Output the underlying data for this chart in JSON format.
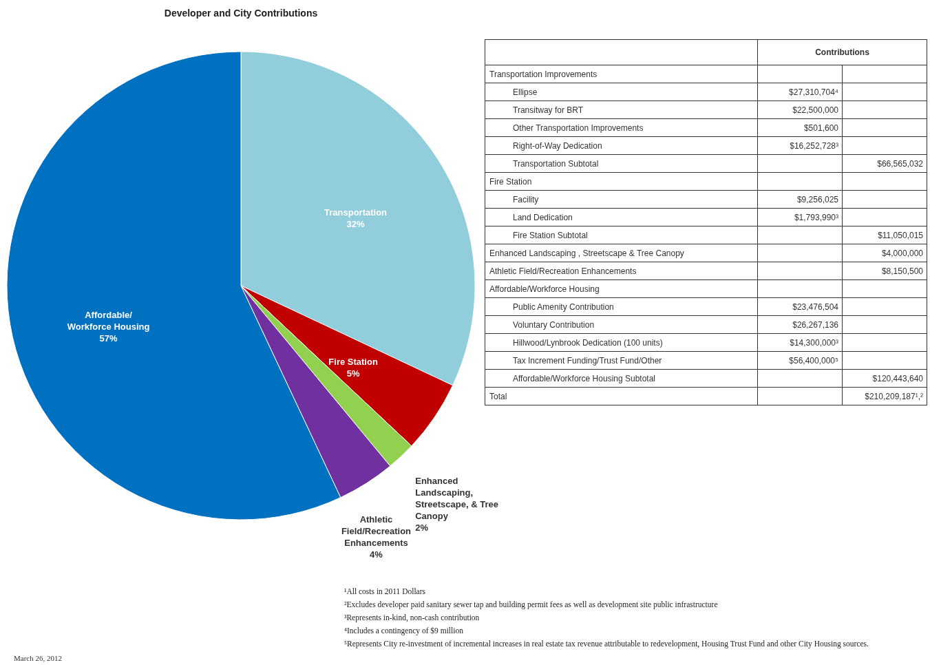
{
  "chart_data": [
    {
      "type": "pie",
      "title": "Developer and City Contributions",
      "categories": [
        "Transportation",
        "Fire Station",
        "Enhanced Landscaping, Streetscape, & Tree Canopy",
        "Athletic Field/Recreation Enhancements",
        "Affordable/ Workforce Housing"
      ],
      "values": [
        32,
        5,
        2,
        4,
        57
      ],
      "value_labels": [
        "32%",
        "5%",
        "2%",
        "4%",
        "57%"
      ],
      "colors": [
        "#92cddc",
        "#c00000",
        "#92d050",
        "#7030a0",
        "#0070c0"
      ],
      "legend": false,
      "annotations": [
        "March 26, 2012",
        "¹All costs in 2011 Dollars",
        "²Excludes developer paid sanitary sewer tap and building permit fees as well as development site public infrastructure",
        "³Represents in-kind, non-cash contribution",
        "⁴Includes a contingency of $9 million",
        "⁵Represents City re-investment of incremental increases in real estate tax revenue attributable to redevelopment, Housing Trust Fund and other City Housing sources."
      ]
    },
    {
      "type": "other",
      "title": "Contributions",
      "categories": [
        "Transportation Improvements",
        "Ellipse",
        "Transitway for BRT",
        "Other Transportation Improvements",
        "Right-of-Way Dedication",
        "Transportation Subtotal",
        "Fire Station",
        "Facility",
        "Land Dedication",
        "Fire Station Subtotal",
        "Enhanced Landscaping , Streetscape & Tree Canopy",
        "Athletic Field/Recreation Enhancements",
        "Affordable/Workforce Housing",
        "Public Amenity Contribution",
        "Voluntary Contribution",
        "Hillwood/Lynbrook Dedication (100 units)",
        "Tax Increment Funding/Trust Fund/Other",
        "Affordable/Workforce Housing Subtotal",
        "Total"
      ],
      "series": [
        {
          "values": [
            null,
            27310704,
            22500000,
            501600,
            16252728,
            null,
            null,
            9256025,
            1793990,
            null,
            null,
            null,
            null,
            23476504,
            26267136,
            14300000,
            56400000,
            null,
            null
          ],
          "value_labels": [
            null,
            "$27,310,704⁴",
            "$22,500,000",
            "$501,600",
            "$16,252,728³",
            null,
            null,
            "$9,256,025",
            "$1,793,990³",
            null,
            null,
            null,
            null,
            "$23,476,504",
            "$26,267,136",
            "$14,300,000³",
            "$56,400,000⁵",
            null,
            null
          ]
        },
        {
          "values": [
            null,
            null,
            null,
            null,
            null,
            66565032,
            null,
            null,
            null,
            11050015,
            4000000,
            8150500,
            null,
            null,
            null,
            null,
            null,
            120443640,
            210209187
          ],
          "value_labels": [
            null,
            null,
            null,
            null,
            null,
            "$66,565,032",
            null,
            null,
            null,
            "$11,050,015",
            "$4,000,000",
            "$8,150,500",
            null,
            null,
            null,
            null,
            null,
            "$120,443,640",
            "$210,209,187¹,²"
          ]
        }
      ]
    }
  ]
}
